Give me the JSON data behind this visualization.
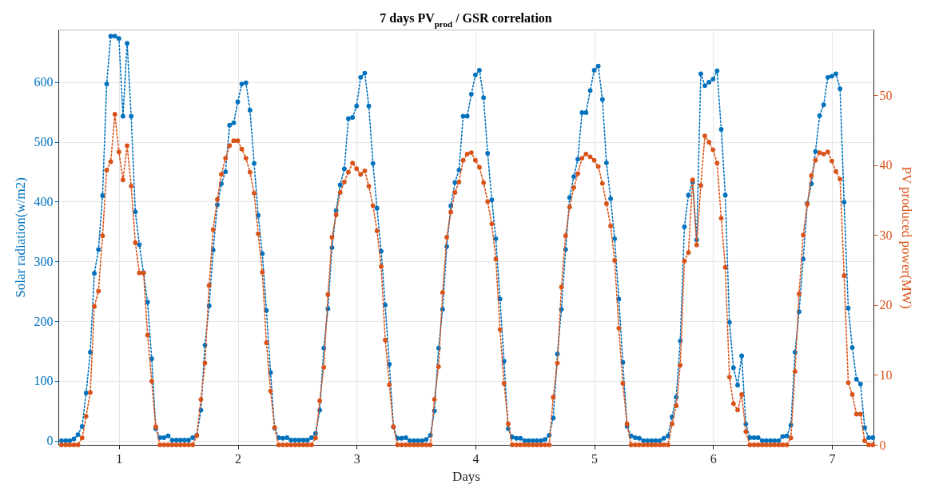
{
  "chart_data": {
    "type": "line",
    "title": "7 days PV$_{prod}$ / GSR correlation",
    "xlabel": "Days",
    "ylabel": "Solar radiation(w/m2)",
    "y2label": "PV produced power(MW)",
    "x": [
      0.517,
      0.552,
      0.586,
      0.621,
      0.655,
      0.69,
      0.724,
      0.759,
      0.793,
      0.828,
      0.862,
      0.897,
      0.931,
      0.966,
      1,
      1.034,
      1.069,
      1.103,
      1.138,
      1.172,
      1.207,
      1.241,
      1.276,
      1.31,
      1.345,
      1.379,
      1.414,
      1.448,
      1.483,
      1.517,
      1.552,
      1.586,
      1.621,
      1.655,
      1.69,
      1.724,
      1.759,
      1.793,
      1.828,
      1.862,
      1.897,
      1.931,
      1.966,
      2,
      2.034,
      2.069,
      2.103,
      2.138,
      2.172,
      2.207,
      2.241,
      2.276,
      2.31,
      2.345,
      2.379,
      2.414,
      2.448,
      2.483,
      2.517,
      2.552,
      2.586,
      2.621,
      2.655,
      2.69,
      2.724,
      2.759,
      2.793,
      2.828,
      2.862,
      2.897,
      2.931,
      2.966,
      3,
      3.034,
      3.069,
      3.103,
      3.138,
      3.172,
      3.207,
      3.241,
      3.276,
      3.31,
      3.345,
      3.379,
      3.414,
      3.448,
      3.483,
      3.517,
      3.552,
      3.586,
      3.621,
      3.655,
      3.69,
      3.724,
      3.759,
      3.793,
      3.828,
      3.862,
      3.897,
      3.931,
      3.966,
      4,
      4.034,
      4.069,
      4.103,
      4.138,
      4.172,
      4.207,
      4.241,
      4.276,
      4.31,
      4.345,
      4.379,
      4.414,
      4.448,
      4.483,
      4.517,
      4.552,
      4.586,
      4.621,
      4.655,
      4.69,
      4.724,
      4.759,
      4.793,
      4.828,
      4.862,
      4.897,
      4.931,
      4.966,
      5,
      5.034,
      5.069,
      5.103,
      5.138,
      5.172,
      5.207,
      5.241,
      5.276,
      5.31,
      5.345,
      5.379,
      5.414,
      5.448,
      5.483,
      5.517,
      5.552,
      5.586,
      5.621,
      5.655,
      5.69,
      5.724,
      5.759,
      5.793,
      5.828,
      5.862,
      5.897,
      5.931,
      5.966,
      6,
      6.034,
      6.069,
      6.103,
      6.138,
      6.172,
      6.207,
      6.241,
      6.276,
      6.31,
      6.345,
      6.379,
      6.414,
      6.448,
      6.483,
      6.517,
      6.552,
      6.586,
      6.621,
      6.655,
      6.69,
      6.724,
      6.759,
      6.793,
      6.828,
      6.862,
      6.897,
      6.931,
      6.966,
      7,
      7.034,
      7.069,
      7.103,
      7.138,
      7.172,
      7.207,
      7.241,
      7.276,
      7.31,
      7.345
    ],
    "series": [
      {
        "color": "#0072bd",
        "values": [
          0,
          0,
          0,
          3,
          10,
          24,
          80,
          148,
          280,
          320,
          410,
          597,
          677,
          677,
          673,
          543,
          665,
          543,
          383,
          328,
          281,
          232,
          137,
          20,
          5,
          5,
          8,
          1,
          1,
          1,
          1,
          1,
          5,
          9,
          51,
          160,
          226,
          319,
          395,
          430,
          450,
          528,
          532,
          567,
          597,
          599,
          553,
          464,
          377,
          313,
          218,
          114,
          21,
          5,
          4,
          5,
          1,
          1,
          1,
          1,
          1,
          5,
          12,
          51,
          155,
          221,
          323,
          385,
          428,
          455,
          539,
          541,
          560,
          608,
          615,
          560,
          464,
          389,
          317,
          227,
          128,
          23,
          4,
          4,
          5,
          0,
          0,
          0,
          0,
          2,
          9,
          50,
          155,
          220,
          325,
          393,
          432,
          453,
          543,
          543,
          580,
          612,
          620,
          574,
          481,
          403,
          338,
          237,
          133,
          20,
          6,
          4,
          4,
          0,
          0,
          0,
          0,
          0,
          2,
          9,
          38,
          145,
          220,
          320,
          407,
          442,
          471,
          549,
          549,
          586,
          620,
          627,
          571,
          465,
          405,
          338,
          237,
          131,
          24,
          8,
          5,
          4,
          0,
          0,
          0,
          0,
          0,
          4,
          8,
          40,
          73,
          167,
          358,
          411,
          433,
          336,
          614,
          594,
          600,
          605,
          619,
          521,
          411,
          198,
          122,
          93,
          142,
          28,
          5,
          5,
          5,
          0,
          0,
          0,
          0,
          0,
          7,
          8,
          26,
          148,
          216,
          304,
          397,
          430,
          484,
          544,
          562,
          608,
          610,
          614,
          589,
          399,
          222,
          156,
          103,
          95,
          22,
          5,
          5
        ]
      },
      {
        "color": "#d95319",
        "axis": "y2",
        "values": [
          0,
          0,
          0,
          0,
          0,
          1,
          4.1,
          7.5,
          19.8,
          22,
          29.9,
          39.3,
          40.5,
          47.3,
          41.9,
          37.9,
          42.8,
          37,
          28.9,
          24.6,
          24.6,
          15.7,
          9.1,
          2.6,
          0,
          0,
          0,
          0,
          0,
          0,
          0,
          0,
          0,
          1.3,
          6.5,
          11.7,
          22.8,
          30.8,
          35.1,
          38.7,
          41,
          42.8,
          43.5,
          43.5,
          42.3,
          41,
          39,
          36,
          30.2,
          24.7,
          14.6,
          7.7,
          2.5,
          0,
          0,
          0,
          0,
          0,
          0,
          0,
          0,
          0,
          1,
          6.3,
          11.1,
          21.5,
          29.7,
          32.9,
          36.1,
          37.6,
          39,
          40.3,
          39.5,
          38.7,
          39.2,
          37,
          34.2,
          30.6,
          25.5,
          15,
          8.6,
          2.6,
          0,
          0,
          0,
          0,
          0,
          0,
          0,
          0,
          0,
          6.5,
          11.2,
          21.8,
          29.7,
          33.3,
          36.1,
          37.6,
          40.7,
          41.6,
          41.8,
          40.7,
          39.7,
          37.5,
          34.8,
          31.6,
          26.6,
          16.5,
          8.8,
          3,
          0,
          0,
          0,
          0,
          0,
          0,
          0,
          0,
          0,
          0,
          6.8,
          11.7,
          22.6,
          29.9,
          34,
          36.8,
          38.8,
          41,
          41.6,
          41.2,
          40.7,
          39.8,
          37.4,
          34.5,
          31.3,
          26.4,
          16.7,
          8.8,
          3,
          0,
          0,
          0,
          0,
          0,
          0,
          0,
          0,
          0,
          0,
          3,
          5.6,
          11.4,
          26.3,
          27.5,
          37.9,
          28.6,
          37.1,
          44.2,
          43.3,
          42.2,
          40.3,
          32.4,
          25.4,
          9.7,
          5.9,
          5,
          7.2,
          1.9,
          0,
          0,
          0,
          0,
          0,
          0,
          0,
          0,
          0,
          0,
          1,
          10.5,
          21.6,
          30,
          34.4,
          38.5,
          40.7,
          41.8,
          41.6,
          41.9,
          40.6,
          39.1,
          38,
          24.2,
          8.9,
          7.2,
          4.4,
          4.4,
          0.6,
          0,
          0
        ]
      }
    ],
    "xlim": [
      0.49,
      7.35
    ],
    "xticks": [
      1,
      2,
      3,
      4,
      5,
      6,
      7
    ],
    "ylim": [
      -7,
      688
    ],
    "yticks": [
      0,
      100,
      200,
      300,
      400,
      500,
      600
    ],
    "y2lim": [
      0,
      59.4
    ],
    "y2ticks": [
      0,
      10,
      20,
      30,
      40,
      50
    ],
    "grid": true,
    "marker": "circle",
    "line_style": "dotted"
  }
}
